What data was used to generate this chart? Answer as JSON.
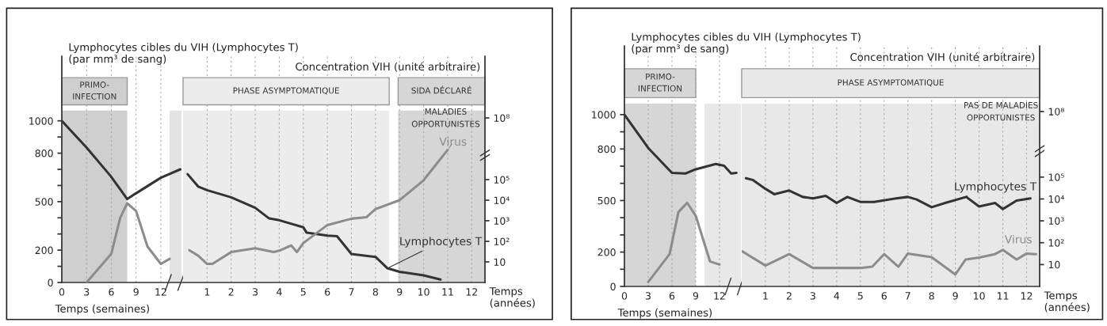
{
  "chart_data": [
    {
      "type": "line",
      "ylabel": "Lymphocytes cibles du VIH (Lymphocytes T)\n(par mm³ de sang)",
      "xlabel": "Temps (semaines)",
      "xlim": [
        0,
        14.5
      ],
      "xticks": [
        0,
        3,
        6,
        9,
        12
      ],
      "ylim": [
        0,
        1400
      ],
      "yticks": [
        0,
        {
          "value": 100,
          "label": null
        },
        200,
        {
          "value": 300,
          "label": null
        },
        {
          "value": 400,
          "label": null
        },
        500,
        {
          "value": 600,
          "label": null
        },
        {
          "value": 700,
          "label": null
        },
        800,
        {
          "value": 900,
          "label": null
        },
        1000
      ],
      "log": "y2",
      "y2lim": [
        1,
        100000000000
      ],
      "grid": "x",
      "legend": false,
      "bands": [
        {
          "axis": "x",
          "from": 0,
          "to": 7.93,
          "label": "PRIMO-\nINFECTION",
          "color": "#cfcfcf"
        },
        {
          "axis": "x",
          "from": 13.07,
          "to": 14.5,
          "color": "#e3e3e3"
        }
      ],
      "series": [
        {
          "color": "#333333",
          "x": [
            0,
            3,
            5.91,
            7.93,
            8.91,
            12,
            14.36
          ],
          "values": [
            1000,
            835,
            659,
            516,
            549,
            648,
            700
          ]
        },
        {
          "color": "#8c8c8c",
          "axis": "y2",
          "x": [
            3,
            6,
            7.08,
            7.92,
            9,
            10.38,
            12,
            13.07
          ],
          "values": [
            1,
            25,
            1400,
            7000,
            3000,
            56,
            8,
            14
          ]
        }
      ]
    },
    {
      "type": "line",
      "y2label": "Concentration VIH (unité arbitraire)",
      "annotations": [
        "Temps\n(années)",
        "MALADIES\nOPPORTUNISTES"
      ],
      "xlim": [
        0,
        12.55
      ],
      "xticks": [
        1,
        2,
        3,
        4,
        5,
        6,
        7,
        8,
        9,
        10,
        11,
        12
      ],
      "ylim": [
        0,
        1400
      ],
      "log": "y2",
      "y2lim": [
        1,
        100000000000
      ],
      "y2ticks": [
        10,
        {
          "value": 100,
          "label": "10²"
        },
        {
          "value": 1000,
          "label": "10³"
        },
        {
          "value": 10000,
          "label": "10⁴"
        },
        {
          "value": 100000,
          "label": "10⁵"
        },
        {
          "value": 100000000,
          "label": "10⁸"
        }
      ],
      "grid": "x",
      "legend": false,
      "bands": [
        {
          "axis": "x",
          "from": 0,
          "to": 8.57,
          "label": "PHASE ASYMPTOMATIQUE",
          "color": "#ececec"
        },
        {
          "axis": "x",
          "from": 8.94,
          "to": 12.55,
          "label": "SIDA DÉCLARÉ",
          "color": "#d6d6d6"
        }
      ],
      "series": [
        {
          "name": "Lymphocytes T",
          "color": "#333333",
          "x": [
            0.19,
            0.63,
            1,
            2,
            3,
            3.58,
            4,
            5,
            5.14,
            6,
            6.4,
            7,
            8,
            8.5,
            9,
            10,
            10.7
          ],
          "values": [
            670,
            593,
            571,
            527,
            462,
            396,
            385,
            341,
            308,
            290,
            286,
            176,
            158,
            88,
            66,
            44,
            18
          ]
        },
        {
          "name": "Virus",
          "color": "#8c8c8c",
          "axis": "y2",
          "x": [
            0.26,
            0.63,
            1,
            1.22,
            2,
            3,
            3.77,
            4,
            4.5,
            4.73,
            5,
            6,
            7,
            7.63,
            8,
            9,
            10,
            11
          ],
          "values": [
            37,
            20,
            8,
            8,
            30,
            46,
            30,
            35,
            63,
            30,
            83,
            620,
            1260,
            1500,
            3700,
            10000,
            93000,
            2800000
          ]
        }
      ]
    },
    {
      "type": "line",
      "ylabel": "Lymphocytes cibles du VIH (Lymphocytes T)\n(par mm³ de sang)",
      "xlabel": "Temps (semaines)",
      "xlim": [
        0,
        14.7
      ],
      "xticks": [
        0,
        3,
        6,
        9,
        12
      ],
      "ylim": [
        0,
        1400
      ],
      "yticks": [
        0,
        {
          "value": 100,
          "label": null
        },
        200,
        {
          "value": 300,
          "label": null
        },
        {
          "value": 400,
          "label": null
        },
        500,
        {
          "value": 600,
          "label": null
        },
        {
          "value": 700,
          "label": null
        },
        800,
        {
          "value": 900,
          "label": null
        },
        1000
      ],
      "log": "y2",
      "y2lim": [
        1,
        100000000000
      ],
      "grid": "x",
      "legend": false,
      "bands": [
        {
          "axis": "x",
          "from": 0,
          "to": 9,
          "label": "PRIMO-\nINFECTION",
          "color": "#d6d6d6"
        },
        {
          "axis": "x",
          "from": 10.1,
          "to": 14.7,
          "color": "#e8e8e8"
        }
      ],
      "series": [
        {
          "color": "#333333",
          "x": [
            0,
            3,
            6,
            7.68,
            9,
            11.52,
            12.58,
            13.47,
            14.13
          ],
          "values": [
            1000,
            806,
            661,
            657,
            682,
            713,
            702,
            657,
            661
          ]
        },
        {
          "color": "#8c8c8c",
          "axis": "y2",
          "x": [
            3,
            5.7,
            6.81,
            7.92,
            9,
            10.8,
            12
          ],
          "values": [
            1.6,
            30,
            2500,
            6700,
            1700,
            14,
            10
          ]
        }
      ]
    },
    {
      "type": "line",
      "y2label": "Concentration VIH (unité arbitraire)",
      "annotations": [
        "Temps\n(années)",
        "PAS DE MALADIES\nOPPORTUNISTES"
      ],
      "xlim": [
        0,
        12.55
      ],
      "xticks": [
        1,
        2,
        3,
        4,
        5,
        6,
        7,
        8,
        9,
        10,
        11,
        12
      ],
      "ylim": [
        0,
        1400
      ],
      "log": "y2",
      "y2lim": [
        1,
        100000000000
      ],
      "y2ticks": [
        10,
        {
          "value": 100,
          "label": "10²"
        },
        {
          "value": 1000,
          "label": "10³"
        },
        {
          "value": 10000,
          "label": "10⁴"
        },
        {
          "value": 100000,
          "label": "10⁵"
        },
        {
          "value": 100000000,
          "label": "10⁸"
        }
      ],
      "grid": "x",
      "legend": false,
      "bands": [
        {
          "axis": "x",
          "from": 0,
          "to": 12.55,
          "label": "PHASE ASYMPTOMATIQUE",
          "color": "#e8e8e8"
        }
      ],
      "series": [
        {
          "name": "Lymphocytes T",
          "color": "#333333",
          "x": [
            0.18,
            0.46,
            1,
            1.37,
            2,
            2.57,
            3,
            3.54,
            4,
            4.45,
            5,
            5.57,
            6.5,
            7,
            7.37,
            8,
            8.57,
            9.46,
            10,
            10.67,
            11,
            11.58,
            12.16
          ],
          "values": [
            630,
            620,
            568,
            537,
            558,
            521,
            512,
            527,
            486,
            521,
            492,
            492,
            512,
            521,
            506,
            461,
            486,
            521,
            465,
            486,
            450,
            500,
            512
          ]
        },
        {
          "name": "Virus",
          "color": "#8c8c8c",
          "axis": "y2",
          "x": [
            0.03,
            1,
            2,
            3,
            5,
            5.5,
            6,
            6.6,
            7,
            8,
            9,
            9.43,
            10,
            10.67,
            11,
            11.58,
            12,
            12.4
          ],
          "values": [
            40,
            9,
            30,
            7,
            7,
            8,
            30,
            8,
            32,
            22,
            3.5,
            17,
            21,
            30,
            47,
            17,
            32,
            30
          ]
        }
      ]
    }
  ]
}
